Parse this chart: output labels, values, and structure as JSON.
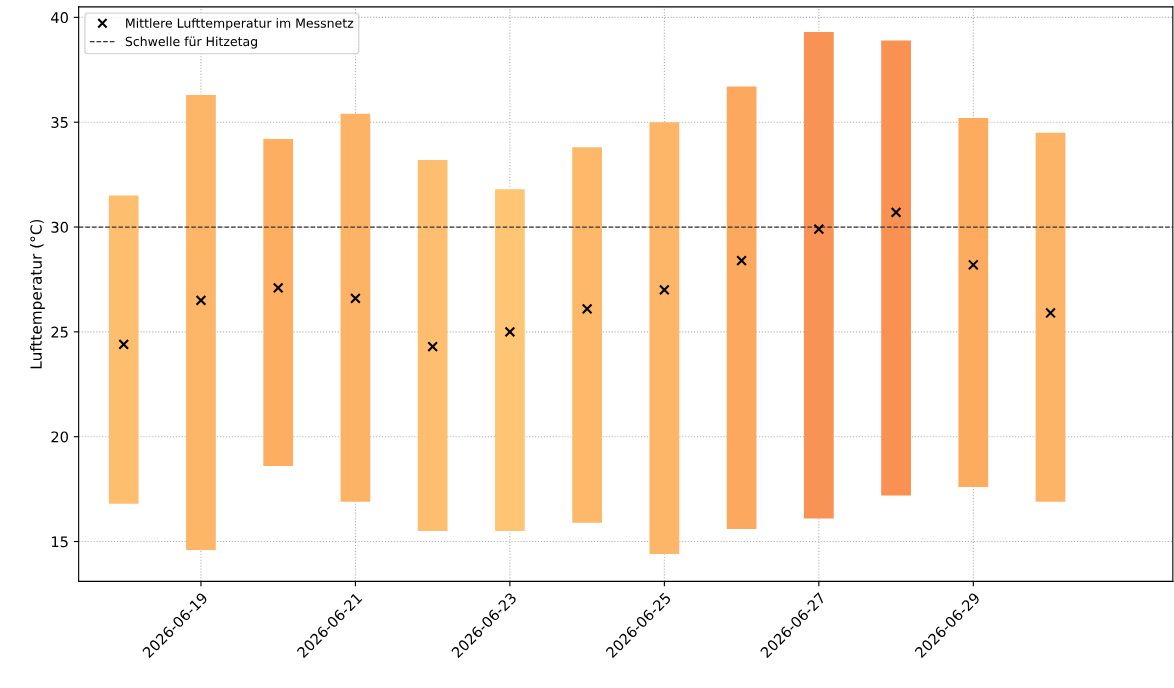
{
  "chart_data": {
    "type": "bar",
    "ylabel": "Lufttemperatur (°C)",
    "x": [
      "2026-06-18",
      "2026-06-19",
      "2026-06-20",
      "2026-06-21",
      "2026-06-22",
      "2026-06-23",
      "2026-06-24",
      "2026-06-25",
      "2026-06-26",
      "2026-06-27",
      "2026-06-28",
      "2026-06-29",
      "2026-06-30"
    ],
    "series": [
      {
        "type": "bar",
        "colors": [
          "#fdbf6f",
          "#fdb567",
          "#fdae61",
          "#fdb366",
          "#fdbf6f",
          "#fec574",
          "#fdb869",
          "#fdb567",
          "#fca85e",
          "#f99355",
          "#f99153",
          "#fcab5f",
          "#fdb466"
        ],
        "base": [
          16.8,
          14.6,
          18.6,
          16.9,
          15.5,
          15.5,
          15.9,
          14.4,
          15.6,
          16.1,
          17.2,
          17.6,
          16.9
        ],
        "values": [
          14.7,
          21.7,
          15.6,
          18.5,
          17.7,
          16.3,
          17.9,
          20.6,
          21.1,
          23.2,
          21.7,
          17.6,
          17.6
        ]
      },
      {
        "type": "scatter",
        "name": "Mittlere Lufttemperatur im Messnetz",
        "color": "#000000",
        "marker": "cross",
        "values": [
          24.4,
          26.5,
          27.1,
          26.6,
          24.3,
          25.0,
          26.1,
          27.0,
          28.4,
          29.9,
          30.7,
          28.2,
          25.9
        ]
      }
    ],
    "ref_lines": [
      {
        "axis": "y",
        "value": 30,
        "label": "Schwelle für Hitzetag",
        "color": "#333333",
        "line_style": "dashed"
      }
    ],
    "xlim": [
      "2026-06-17T10:00",
      "2026-07-01T14:00"
    ],
    "xticks": [
      {
        "value": "2026-06-19",
        "label": "2026-06-19"
      },
      {
        "value": "2026-06-21",
        "label": "2026-06-21"
      },
      {
        "value": "2026-06-23",
        "label": "2026-06-23"
      },
      {
        "value": "2026-06-25",
        "label": "2026-06-25"
      },
      {
        "value": "2026-06-27",
        "label": "2026-06-27"
      },
      {
        "value": "2026-06-29",
        "label": "2026-06-29"
      }
    ],
    "ylim": [
      13.1,
      40.5
    ],
    "yticks": [
      15,
      20,
      25,
      30,
      35,
      40
    ],
    "grid": true,
    "legend": "top left"
  }
}
